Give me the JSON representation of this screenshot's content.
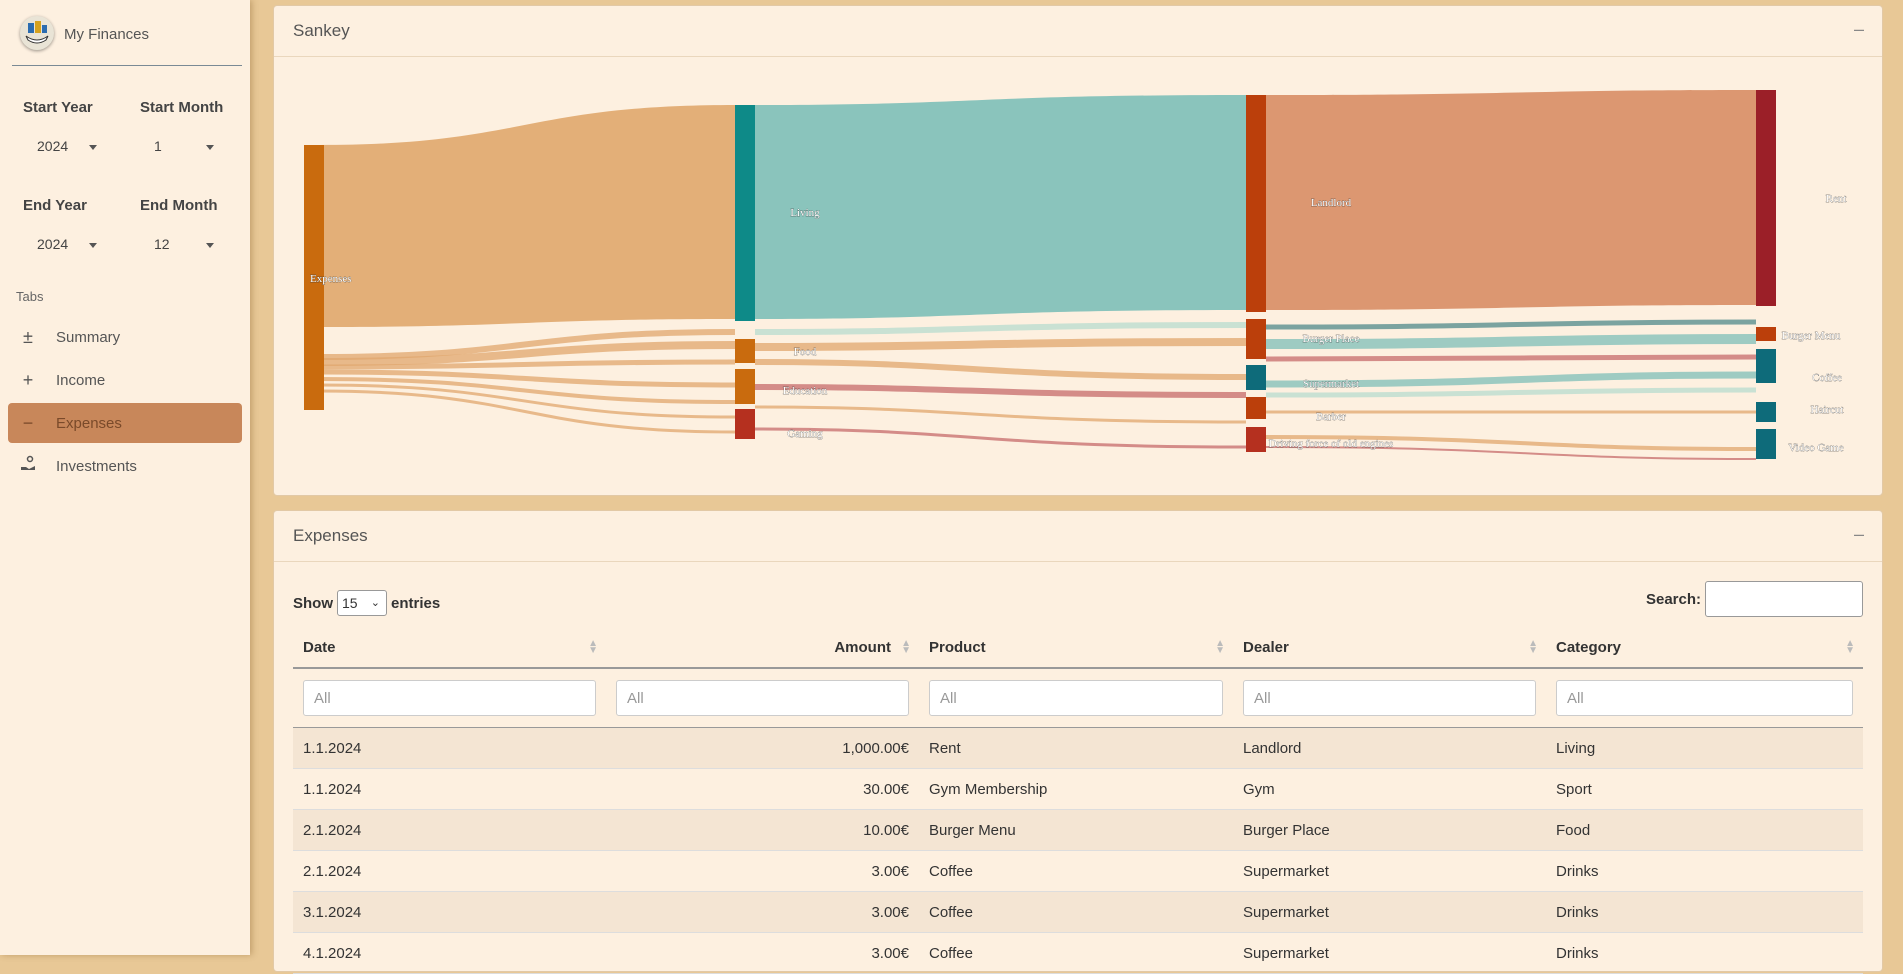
{
  "app": {
    "title": "My Finances"
  },
  "filters": {
    "start_year_label": "Start Year",
    "start_year": "2024",
    "start_month_label": "Start Month",
    "start_month": "1",
    "end_year_label": "End Year",
    "end_year": "2024",
    "end_month_label": "End Month",
    "end_month": "12"
  },
  "nav": {
    "section_label": "Tabs",
    "items": [
      {
        "label": "Summary",
        "icon": "plus-minus-icon"
      },
      {
        "label": "Income",
        "icon": "plus-icon"
      },
      {
        "label": "Expenses",
        "icon": "minus-icon",
        "active": true
      },
      {
        "label": "Investments",
        "icon": "hand-coin-icon"
      }
    ]
  },
  "sankey": {
    "title": "Sankey",
    "nodes": [
      "Expenses",
      "Living",
      "Food",
      "Education",
      "Gaming",
      "Landlord",
      "Burger Place",
      "Supermarket",
      "Barber",
      "Driving force of old engines",
      "Rent",
      "Burger Menu",
      "Coffee",
      "Haircut",
      "Video Game"
    ]
  },
  "expenses": {
    "title": "Expenses",
    "show_label": "Show",
    "entries_value": "15",
    "entries_label": "entries",
    "search_label": "Search:",
    "filter_placeholder": "All",
    "columns": [
      "Date",
      "Amount",
      "Product",
      "Dealer",
      "Category"
    ],
    "rows": [
      [
        "1.1.2024",
        "1,000.00€",
        "Rent",
        "Landlord",
        "Living"
      ],
      [
        "1.1.2024",
        "30.00€",
        "Gym Membership",
        "Gym",
        "Sport"
      ],
      [
        "2.1.2024",
        "10.00€",
        "Burger Menu",
        "Burger Place",
        "Food"
      ],
      [
        "2.1.2024",
        "3.00€",
        "Coffee",
        "Supermarket",
        "Drinks"
      ],
      [
        "3.1.2024",
        "3.00€",
        "Coffee",
        "Supermarket",
        "Drinks"
      ],
      [
        "4.1.2024",
        "3.00€",
        "Coffee",
        "Supermarket",
        "Drinks"
      ]
    ]
  },
  "colors": {
    "accent": "#c8875a",
    "background": "#fdf0e0"
  }
}
